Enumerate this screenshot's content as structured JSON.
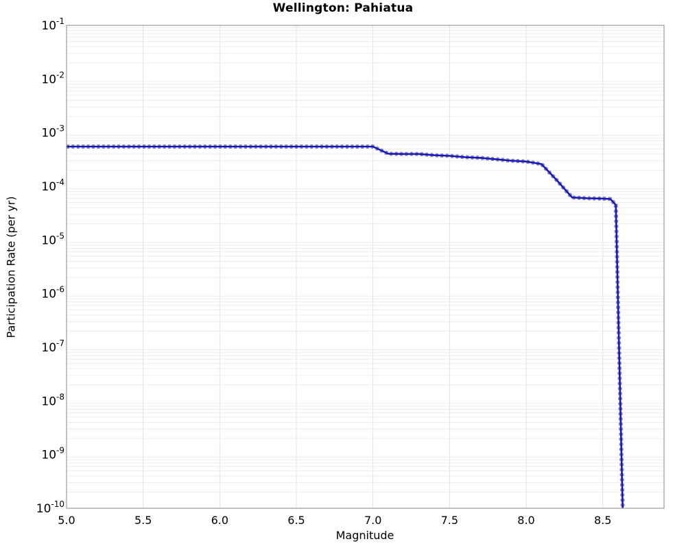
{
  "chart_data": {
    "type": "line",
    "title": "Wellington: Pahiatua",
    "xlabel": "Magnitude",
    "ylabel": "Participation Rate (per yr)",
    "xlim": [
      5.0,
      8.9
    ],
    "ylim": [
      1e-10,
      0.1
    ],
    "x_ticks": [
      "5.0",
      "5.5",
      "6.0",
      "6.5",
      "7.0",
      "7.5",
      "8.0",
      "8.5"
    ],
    "y_tick_exponents": [
      -1,
      -2,
      -3,
      -4,
      -5,
      -6,
      -7,
      -8,
      -9,
      -10
    ],
    "grid": {
      "vertical_major_step": 0.5,
      "horizontal_log_minor_only": true,
      "minor_color": "#ececec",
      "major_color": "#e2e2e2"
    },
    "axis_frame_color": "#9a9a9a",
    "legend": "none",
    "series": [
      {
        "name": "participation-rate",
        "line_color": "#1414cf",
        "dash_marker_color": "#3b3b3b",
        "points": [
          [
            5.0,
            0.00055
          ],
          [
            5.5,
            0.00055
          ],
          [
            6.0,
            0.00055
          ],
          [
            6.5,
            0.00055
          ],
          [
            7.0,
            0.00055
          ],
          [
            7.1,
            0.000405
          ],
          [
            7.2,
            0.0004
          ],
          [
            7.3,
            0.0004
          ],
          [
            7.4,
            0.00038
          ],
          [
            7.5,
            0.00037
          ],
          [
            7.6,
            0.00035
          ],
          [
            7.7,
            0.00034
          ],
          [
            7.8,
            0.00032
          ],
          [
            7.9,
            0.0003
          ],
          [
            8.0,
            0.00029
          ],
          [
            8.1,
            0.00026
          ],
          [
            8.2,
            0.00013
          ],
          [
            8.3,
            6.2e-05
          ],
          [
            8.4,
            6e-05
          ],
          [
            8.5,
            5.9e-05
          ],
          [
            8.55,
            5.8e-05
          ],
          [
            8.585,
            4.5e-05
          ],
          [
            8.63,
            1e-10
          ]
        ]
      }
    ]
  }
}
